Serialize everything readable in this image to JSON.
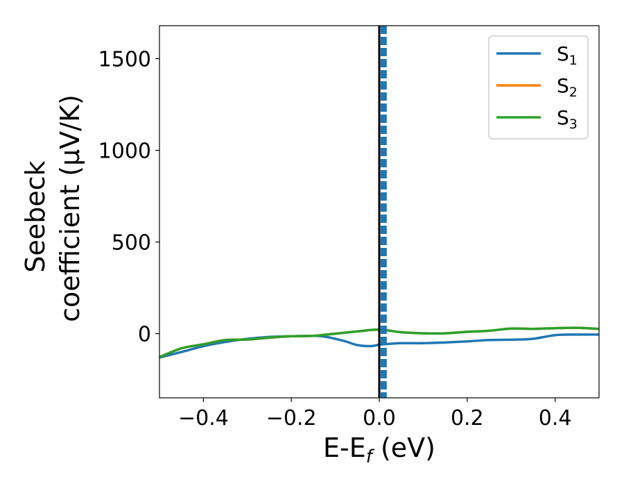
{
  "chart_data": {
    "type": "line",
    "xlabel_main": "E-E",
    "xlabel_sub": "f",
    "xlabel_unit": " (eV)",
    "ylabel_line1": "Seebeck",
    "ylabel_line2": "coefficient  (μV/K)",
    "xlim": [
      -0.5,
      0.5
    ],
    "ylim": [
      -350,
      1680
    ],
    "x_ticks": [
      -0.4,
      -0.2,
      0.0,
      0.2,
      0.4
    ],
    "x_tick_labels": [
      "−0.4",
      "−0.2",
      "0.0",
      "0.2",
      "0.4"
    ],
    "y_ticks": [
      0,
      500,
      1000,
      1500
    ],
    "y_tick_labels": [
      "0",
      "500",
      "1000",
      "1500"
    ],
    "legend_position": "top-right",
    "fermi_line_x": 0.0,
    "series": [
      {
        "name": "S",
        "name_sub": "1",
        "color": "#1f77b4",
        "x": [
          -0.5,
          -0.45,
          -0.4,
          -0.35,
          -0.3,
          -0.25,
          -0.2,
          -0.15,
          -0.12,
          -0.08,
          -0.05,
          -0.02,
          0.0,
          0.01,
          0.05,
          0.1,
          0.15,
          0.2,
          0.25,
          0.3,
          0.35,
          0.4,
          0.45,
          0.5
        ],
        "y": [
          -130,
          -100,
          -68,
          -45,
          -28,
          -18,
          -14,
          -12,
          -18,
          -40,
          -62,
          -68,
          -60,
          -58,
          -52,
          -52,
          -48,
          -42,
          -35,
          -33,
          -28,
          -8,
          -5,
          -5
        ]
      },
      {
        "name": "S",
        "name_sub": "2",
        "color": "#ff7f0e",
        "x": [
          -0.5,
          -0.45,
          -0.4,
          -0.35,
          -0.3,
          -0.25,
          -0.2,
          -0.15,
          -0.1,
          -0.05,
          0.0,
          0.05,
          0.1,
          0.15,
          0.2,
          0.25,
          0.3,
          0.35,
          0.4,
          0.45,
          0.5
        ],
        "y": [
          -128,
          -80,
          -58,
          -35,
          -32,
          -22,
          -14,
          -12,
          0,
          12,
          22,
          8,
          2,
          2,
          10,
          16,
          28,
          26,
          30,
          32,
          26
        ]
      },
      {
        "name": "S",
        "name_sub": "3",
        "color": "#2ca02c",
        "x": [
          -0.5,
          -0.45,
          -0.4,
          -0.35,
          -0.3,
          -0.25,
          -0.2,
          -0.15,
          -0.1,
          -0.05,
          0.0,
          0.05,
          0.1,
          0.15,
          0.2,
          0.25,
          0.3,
          0.35,
          0.4,
          0.45,
          0.5
        ],
        "y": [
          -128,
          -80,
          -58,
          -35,
          -32,
          -22,
          -14,
          -12,
          0,
          12,
          22,
          8,
          2,
          2,
          10,
          16,
          28,
          26,
          30,
          32,
          26
        ]
      }
    ],
    "divergence_marker": {
      "x": 0.01,
      "color": "#1f77b4",
      "style": "dashed"
    }
  }
}
